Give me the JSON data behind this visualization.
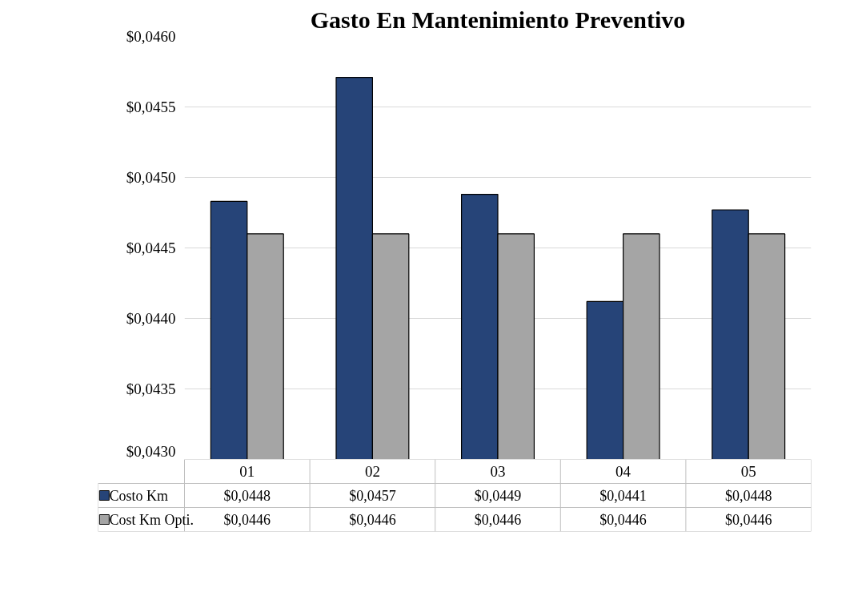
{
  "chart_data": {
    "type": "bar",
    "title": "Gasto En Mantenimiento Preventivo",
    "categories": [
      "01",
      "02",
      "03",
      "04",
      "05"
    ],
    "series": [
      {
        "name": "Costo Km",
        "color": "#264478",
        "values": [
          0.04483,
          0.04571,
          0.04488,
          0.04412,
          0.04477
        ],
        "value_labels": [
          "$0,0448",
          "$0,0457",
          "$0,0449",
          "$0,0441",
          "$0,0448"
        ]
      },
      {
        "name": "Cost Km Opti.",
        "color": "#a5a5a5",
        "values": [
          0.0446,
          0.0446,
          0.0446,
          0.0446,
          0.0446
        ],
        "value_labels": [
          "$0,0446",
          "$0,0446",
          "$0,0446",
          "$0,0446",
          "$0,0446"
        ]
      }
    ],
    "ylim": [
      0.043,
      0.046
    ],
    "yticks": [
      {
        "value": 0.043,
        "label": "$0,0430"
      },
      {
        "value": 0.0435,
        "label": "$0,0435"
      },
      {
        "value": 0.044,
        "label": "$0,0440"
      },
      {
        "value": 0.0445,
        "label": "$0,0445"
      },
      {
        "value": 0.045,
        "label": "$0,0450"
      },
      {
        "value": 0.0455,
        "label": "$0,0455"
      },
      {
        "value": 0.046,
        "label": "$0,0460"
      }
    ],
    "grid": "y",
    "legend": "bottom left"
  }
}
